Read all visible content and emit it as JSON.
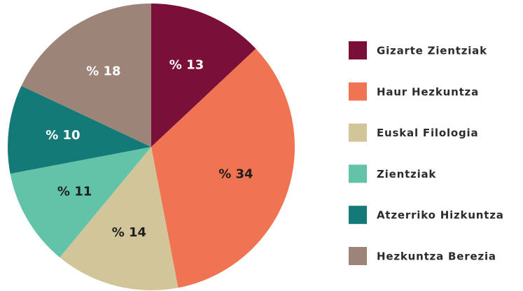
{
  "chart_data": {
    "type": "pie",
    "categories": [
      "Gizarte Zientziak",
      "Haur Hezkuntza",
      "Euskal Filologia",
      "Zientziak",
      "Atzerriko Hizkuntza",
      "Hezkuntza Berezia"
    ],
    "values": [
      13,
      34,
      14,
      11,
      10,
      18
    ],
    "value_labels": [
      "% 13",
      "% 34",
      "% 14",
      "% 11",
      "% 10",
      "% 18"
    ],
    "colors": [
      "#7a1038",
      "#f07352",
      "#d3c59a",
      "#63c3a9",
      "#147a78",
      "#9c8578"
    ],
    "legend": "right"
  }
}
